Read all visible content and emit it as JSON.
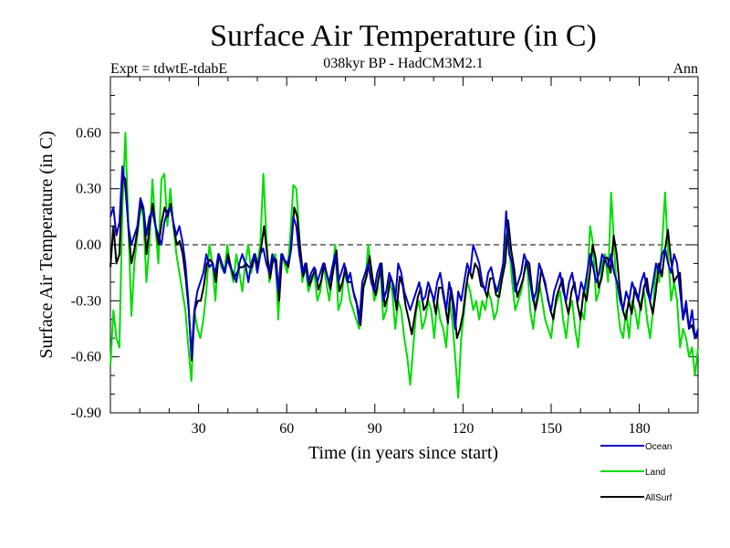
{
  "chart_data": {
    "type": "line",
    "title": "Surface Air Temperature (in C)",
    "subtitle": "038kyr BP - HadCM3M2.1",
    "left_label": "Expt = tdwtE-tdabE",
    "right_label": "Ann",
    "xlabel": "Time (in years since start)",
    "ylabel": "Surface Air Temperature (in C)",
    "xlim": [
      0,
      200
    ],
    "ylim": [
      -0.9,
      0.9
    ],
    "x_ticks": [
      30,
      60,
      90,
      120,
      150,
      180
    ],
    "y_ticks": [
      -0.9,
      -0.6,
      -0.3,
      0.0,
      0.3,
      0.6
    ],
    "y_tick_labels": [
      "-0.90",
      "-0.60",
      "-0.30",
      "0.00",
      "0.30",
      "0.60"
    ],
    "x_tick_labels": [
      "30",
      "60",
      "90",
      "120",
      "150",
      "180"
    ],
    "zero_line": "dashed",
    "legend_position": "bottom-right",
    "series": [
      {
        "name": "Ocean",
        "color": "#0000cc",
        "values": [
          0.15,
          0.2,
          0.05,
          0.12,
          0.42,
          0.3,
          0.1,
          0.0,
          0.05,
          0.1,
          0.25,
          0.2,
          0.05,
          0.15,
          0.18,
          0.1,
          0.05,
          0.0,
          0.12,
          0.18,
          0.2,
          0.12,
          0.05,
          0.1,
          0.02,
          -0.1,
          -0.3,
          -0.6,
          -0.35,
          -0.25,
          -0.2,
          -0.15,
          -0.05,
          -0.12,
          -0.1,
          -0.15,
          -0.05,
          -0.1,
          -0.15,
          -0.08,
          -0.12,
          -0.15,
          -0.2,
          -0.1,
          -0.05,
          -0.1,
          -0.2,
          -0.1,
          -0.05,
          -0.15,
          -0.05,
          -0.02,
          -0.1,
          -0.15,
          -0.05,
          -0.1,
          -0.25,
          -0.05,
          -0.08,
          -0.1,
          -0.05,
          0.15,
          0.1,
          -0.05,
          -0.15,
          -0.1,
          -0.2,
          -0.15,
          -0.12,
          -0.2,
          -0.15,
          -0.1,
          -0.15,
          -0.2,
          -0.12,
          -0.05,
          -0.2,
          -0.15,
          -0.1,
          -0.2,
          -0.15,
          -0.25,
          -0.3,
          -0.42,
          -0.2,
          -0.15,
          -0.1,
          -0.2,
          -0.25,
          -0.15,
          -0.1,
          -0.3,
          -0.25,
          -0.15,
          -0.2,
          -0.3,
          -0.1,
          -0.15,
          -0.25,
          -0.3,
          -0.35,
          -0.3,
          -0.25,
          -0.2,
          -0.3,
          -0.28,
          -0.2,
          -0.25,
          -0.3,
          -0.2,
          -0.15,
          -0.25,
          -0.35,
          -0.2,
          -0.3,
          -0.45,
          -0.25,
          -0.3,
          -0.2,
          -0.1,
          -0.15,
          0.0,
          -0.05,
          -0.1,
          -0.2,
          -0.25,
          -0.15,
          -0.12,
          -0.2,
          -0.25,
          -0.18,
          -0.1,
          0.18,
          -0.05,
          -0.1,
          -0.25,
          -0.2,
          -0.15,
          -0.05,
          -0.1,
          -0.2,
          -0.3,
          -0.25,
          -0.1,
          -0.15,
          -0.2,
          -0.3,
          -0.35,
          -0.25,
          -0.2,
          -0.15,
          -0.25,
          -0.3,
          -0.2,
          -0.15,
          -0.25,
          -0.3,
          -0.2,
          -0.25,
          -0.15,
          -0.05,
          -0.12,
          -0.2,
          -0.15,
          -0.05,
          -0.08,
          -0.12,
          -0.05,
          -0.15,
          -0.2,
          -0.3,
          -0.35,
          -0.25,
          -0.3,
          -0.2,
          -0.25,
          -0.3,
          -0.2,
          -0.15,
          -0.25,
          -0.3,
          -0.2,
          -0.1,
          -0.15,
          -0.05,
          -0.02,
          -0.1,
          -0.15,
          -0.05,
          -0.1,
          -0.25,
          -0.4,
          -0.3,
          -0.45,
          -0.35,
          -0.5,
          -0.45
        ],
        "legend_label": "Ocean"
      },
      {
        "name": "Land",
        "color": "#00dd00",
        "values": [
          -0.65,
          -0.35,
          -0.5,
          -0.55,
          0.2,
          0.6,
          0.1,
          -0.38,
          -0.1,
          0.05,
          0.2,
          0.15,
          -0.2,
          0.0,
          0.35,
          0.1,
          -0.1,
          0.35,
          0.38,
          0.1,
          0.3,
          0.1,
          -0.05,
          -0.15,
          -0.25,
          -0.35,
          -0.55,
          -0.73,
          -0.35,
          -0.45,
          -0.5,
          -0.4,
          -0.25,
          0.0,
          -0.1,
          -0.3,
          -0.05,
          -0.12,
          -0.15,
          0.0,
          -0.12,
          -0.2,
          -0.05,
          -0.15,
          -0.25,
          -0.1,
          0.0,
          -0.15,
          -0.05,
          -0.1,
          0.0,
          0.38,
          0.05,
          -0.2,
          -0.1,
          -0.05,
          -0.4,
          -0.05,
          -0.1,
          -0.15,
          0.05,
          0.32,
          0.3,
          0.05,
          -0.2,
          -0.1,
          -0.25,
          -0.2,
          -0.15,
          -0.3,
          -0.25,
          -0.1,
          -0.2,
          -0.3,
          -0.15,
          0.0,
          -0.35,
          -0.3,
          -0.15,
          -0.2,
          -0.3,
          -0.35,
          -0.4,
          -0.45,
          -0.25,
          -0.2,
          0.0,
          -0.15,
          -0.3,
          -0.25,
          -0.1,
          -0.4,
          -0.35,
          -0.2,
          -0.25,
          -0.45,
          -0.3,
          -0.35,
          -0.5,
          -0.6,
          -0.75,
          -0.55,
          -0.35,
          -0.3,
          -0.45,
          -0.4,
          -0.3,
          -0.35,
          -0.5,
          -0.3,
          -0.4,
          -0.45,
          -0.55,
          -0.3,
          -0.4,
          -0.6,
          -0.82,
          -0.5,
          -0.35,
          -0.2,
          -0.25,
          -0.35,
          -0.3,
          -0.4,
          -0.3,
          -0.35,
          -0.25,
          -0.3,
          -0.4,
          -0.35,
          -0.2,
          -0.1,
          0.05,
          0.0,
          -0.2,
          -0.35,
          -0.3,
          -0.25,
          -0.15,
          -0.1,
          -0.35,
          -0.45,
          -0.3,
          -0.2,
          -0.3,
          -0.4,
          -0.45,
          -0.5,
          -0.35,
          -0.3,
          -0.25,
          -0.4,
          -0.5,
          -0.35,
          -0.3,
          -0.45,
          -0.55,
          -0.35,
          -0.4,
          -0.2,
          0.1,
          0.0,
          -0.3,
          -0.25,
          -0.1,
          -0.05,
          -0.2,
          0.28,
          0.0,
          -0.3,
          -0.45,
          -0.5,
          -0.35,
          -0.5,
          -0.3,
          -0.35,
          -0.45,
          -0.3,
          -0.25,
          -0.4,
          -0.5,
          -0.35,
          -0.1,
          -0.2,
          0.0,
          0.28,
          -0.05,
          -0.3,
          -0.2,
          -0.3,
          -0.55,
          -0.45,
          -0.5,
          -0.6,
          -0.55,
          -0.7,
          -0.55
        ],
        "legend_label": "Land"
      },
      {
        "name": "AllSurf",
        "color": "#000000",
        "values": [
          -0.12,
          0.1,
          -0.1,
          -0.05,
          0.38,
          0.35,
          0.08,
          -0.1,
          -0.02,
          0.08,
          0.22,
          0.18,
          -0.05,
          0.1,
          0.22,
          0.1,
          0.0,
          0.12,
          0.2,
          0.15,
          0.22,
          0.1,
          0.0,
          0.02,
          -0.05,
          -0.18,
          -0.35,
          -0.62,
          -0.35,
          -0.3,
          -0.3,
          -0.22,
          -0.1,
          -0.08,
          -0.1,
          -0.2,
          -0.05,
          -0.1,
          -0.15,
          -0.05,
          -0.12,
          -0.18,
          -0.15,
          -0.12,
          -0.12,
          -0.1,
          -0.12,
          -0.12,
          -0.05,
          -0.12,
          -0.02,
          0.1,
          -0.05,
          -0.18,
          -0.07,
          -0.08,
          -0.3,
          -0.05,
          -0.09,
          -0.12,
          -0.02,
          0.2,
          0.15,
          -0.02,
          -0.17,
          -0.1,
          -0.22,
          -0.17,
          -0.13,
          -0.24,
          -0.19,
          -0.1,
          -0.17,
          -0.24,
          -0.13,
          -0.03,
          -0.25,
          -0.2,
          -0.12,
          -0.2,
          -0.2,
          -0.28,
          -0.33,
          -0.43,
          -0.22,
          -0.17,
          -0.06,
          -0.18,
          -0.27,
          -0.18,
          -0.1,
          -0.33,
          -0.28,
          -0.17,
          -0.22,
          -0.35,
          -0.17,
          -0.22,
          -0.33,
          -0.4,
          -0.48,
          -0.38,
          -0.28,
          -0.23,
          -0.35,
          -0.32,
          -0.23,
          -0.28,
          -0.37,
          -0.23,
          -0.23,
          -0.32,
          -0.42,
          -0.23,
          -0.33,
          -0.5,
          -0.45,
          -0.37,
          -0.23,
          -0.13,
          -0.18,
          -0.1,
          -0.13,
          -0.22,
          -0.23,
          -0.28,
          -0.18,
          -0.18,
          -0.27,
          -0.28,
          -0.18,
          -0.1,
          0.13,
          -0.03,
          -0.13,
          -0.28,
          -0.23,
          -0.18,
          -0.08,
          -0.1,
          -0.25,
          -0.35,
          -0.27,
          -0.13,
          -0.2,
          -0.27,
          -0.35,
          -0.4,
          -0.28,
          -0.23,
          -0.18,
          -0.3,
          -0.37,
          -0.25,
          -0.2,
          -0.32,
          -0.4,
          -0.25,
          -0.3,
          -0.17,
          0.0,
          -0.07,
          -0.23,
          -0.18,
          -0.07,
          -0.07,
          -0.15,
          0.05,
          -0.05,
          -0.23,
          -0.35,
          -0.4,
          -0.3,
          -0.37,
          -0.23,
          -0.28,
          -0.35,
          -0.23,
          -0.18,
          -0.3,
          -0.37,
          -0.25,
          -0.1,
          -0.17,
          -0.03,
          0.08,
          -0.08,
          -0.2,
          -0.17,
          -0.15,
          -0.4,
          -0.33,
          -0.45,
          -0.43,
          -0.5,
          -0.48
        ],
        "legend_label": "AllSurf"
      }
    ]
  }
}
